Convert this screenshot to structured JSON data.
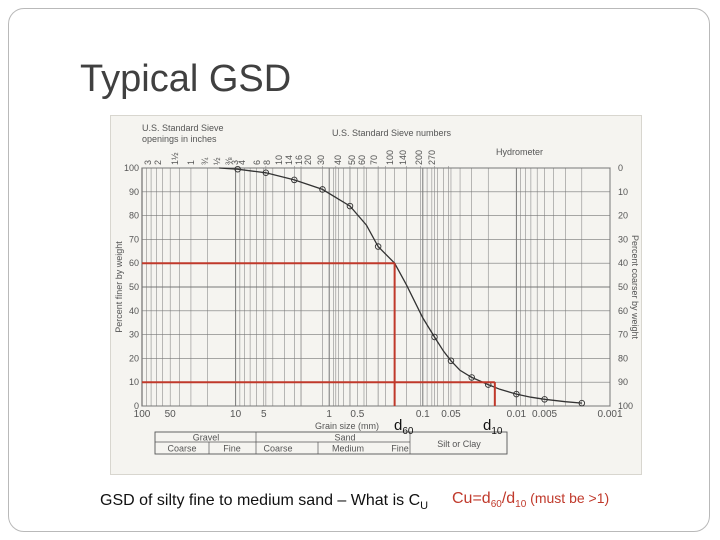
{
  "slide": {
    "title": "Typical GSD",
    "caption": "GSD of silty fine to medium sand – What is C",
    "caption_sub": "U",
    "formula": {
      "lhs": "Cu=d",
      "s60": "60",
      "slash": "/d",
      "s10": "10",
      "note": " (must be >1)"
    },
    "d60_label": {
      "base": "d",
      "sub": "60"
    },
    "d10_label": {
      "base": "d",
      "sub": "10"
    },
    "accent_color": "#c0392b"
  },
  "chart_data": {
    "type": "line",
    "xscale": "log-reversed",
    "xlim": [
      100,
      0.001
    ],
    "ylim": [
      0,
      100
    ],
    "ylim_right": [
      100,
      0
    ],
    "top_left_header": [
      "U.S. Standard Sieve",
      "openings in inches"
    ],
    "top_mid_header": "U.S. Standard Sieve numbers",
    "top_right_header": "Hydrometer",
    "sieve_inch_labels": [
      "3",
      "2",
      "1½",
      "1",
      "¾",
      "½",
      "⅜"
    ],
    "sieve_number_labels": [
      "3",
      "4",
      "6",
      "8",
      "10",
      "14",
      "16",
      "20",
      "30",
      "40",
      "50",
      "60",
      "70",
      "100",
      "140",
      "200",
      "270"
    ],
    "x_tick_labels": [
      "100",
      "50",
      "10",
      "5",
      "1",
      "0.5",
      "0.1",
      "0.05",
      "0.01",
      "0.005",
      "0.001"
    ],
    "x_tick_values": [
      100,
      50,
      10,
      5,
      1,
      0.5,
      0.1,
      0.05,
      0.01,
      0.005,
      0.001
    ],
    "y_tick_labels": [
      "0",
      "10",
      "20",
      "30",
      "40",
      "50",
      "60",
      "70",
      "80",
      "90",
      "100"
    ],
    "y2_tick_labels": [
      "100",
      "90",
      "80",
      "70",
      "60",
      "50",
      "40",
      "30",
      "20",
      "10",
      "0"
    ],
    "xlabel": "Grain size (mm)",
    "ylabel": "Percent finer by weight",
    "y2label": "Percent coarser by weight",
    "series": [
      {
        "x": [
          15,
          9.5,
          4.75,
          2.36,
          1.18,
          0.6,
          0.4,
          0.3,
          0.2,
          0.15,
          0.1,
          0.075,
          0.06,
          0.05,
          0.04,
          0.03,
          0.02,
          0.015,
          0.01,
          0.007,
          0.005,
          0.003,
          0.002
        ],
        "y": [
          100,
          99.5,
          98,
          95,
          91,
          84,
          76,
          67,
          60,
          51,
          37,
          29,
          23,
          19,
          15,
          12,
          9,
          7,
          5,
          3.7,
          2.8,
          1.8,
          1.2
        ]
      }
    ],
    "markers": [
      {
        "x": 9.5,
        "y": 99.5
      },
      {
        "x": 4.75,
        "y": 98
      },
      {
        "x": 2.36,
        "y": 95
      },
      {
        "x": 1.18,
        "y": 91
      },
      {
        "x": 0.6,
        "y": 84
      },
      {
        "x": 0.3,
        "y": 67
      },
      {
        "x": 0.075,
        "y": 29
      },
      {
        "x": 0.05,
        "y": 19
      },
      {
        "x": 0.03,
        "y": 12
      },
      {
        "x": 0.02,
        "y": 9
      },
      {
        "x": 0.01,
        "y": 5
      },
      {
        "x": 0.005,
        "y": 2.8
      },
      {
        "x": 0.002,
        "y": 1.2
      }
    ],
    "annotations": [
      {
        "label": "d60",
        "y": 60,
        "x": 0.2
      },
      {
        "label": "d10",
        "y": 10,
        "x": 0.017
      }
    ],
    "soil_classes": {
      "top": [
        "Gravel",
        "Sand",
        "Silt or Clay"
      ],
      "bottom": [
        "Coarse",
        "Fine",
        "Coarse",
        "Medium",
        "Fine"
      ]
    }
  }
}
